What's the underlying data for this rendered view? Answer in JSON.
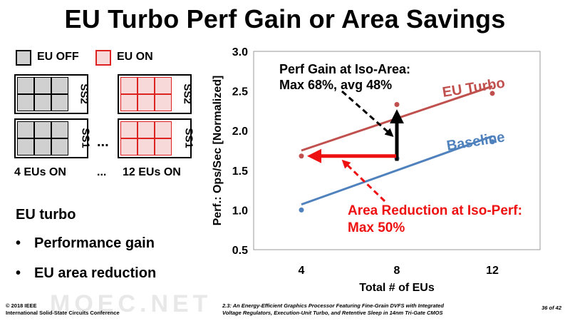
{
  "slide": {
    "title": "EU Turbo Perf Gain or Area Savings",
    "legend": {
      "off_label": "EU OFF",
      "on_label": "EU ON"
    },
    "blocks": {
      "left_top_label": "SS2",
      "left_bottom_label": "SS1",
      "right_top_label": "SS2",
      "right_bottom_label": "SS1",
      "ellipsis": "...",
      "left_caption": "4 EUs ON",
      "mid_caption": "...",
      "right_caption": "12 EUs ON"
    },
    "heading": "EU turbo",
    "bullets": [
      "Performance gain",
      "EU area reduction"
    ],
    "bullet_char": "•",
    "watermark": "MOEC.NET",
    "footer": {
      "left_line1": "© 2018 IEEE",
      "left_line2": "International Solid-State Circuits Conference",
      "mid_line1": "2.3: An Energy-Efficient Graphics Processor Featuring Fine-Grain DVFS with Integrated",
      "mid_line2": "Voltage Regulators, Execution-Unit Turbo, and Retentive Sleep in 14nm Tri-Gate CMOS",
      "page": "36 of 42"
    }
  },
  "colors": {
    "eu_turbo": "#c0504d",
    "baseline": "#4f81bd",
    "arrow_red": "#ee1111",
    "eu_off_fill": "#d0d0d0",
    "eu_on_fill": "#f8d9d9",
    "eu_on_border": "#dd2222"
  },
  "chart_data": {
    "type": "scatter",
    "title": "",
    "xlabel": "Total # of EUs",
    "ylabel": "Perf.: Ops/Sec [Normalized]",
    "xticks": [
      4,
      8,
      12
    ],
    "yticks": [
      "0.5",
      "1.0",
      "1.5",
      "2.0",
      "2.5",
      "3.0"
    ],
    "ylim": [
      0.5,
      3.0
    ],
    "xlim": [
      2,
      14
    ],
    "grid": false,
    "series": [
      {
        "name": "EU Turbo",
        "points": [
          {
            "x": 4,
            "y": 1.68
          },
          {
            "x": 8,
            "y": 2.33
          },
          {
            "x": 12,
            "y": 2.47
          }
        ],
        "fit": [
          {
            "x": 4,
            "y": 1.75
          },
          {
            "x": 12,
            "y": 2.56
          }
        ]
      },
      {
        "name": "Baseline",
        "points": [
          {
            "x": 4,
            "y": 1.0
          },
          {
            "x": 8,
            "y": 1.65
          },
          {
            "x": 12,
            "y": 1.86
          }
        ],
        "fit": [
          {
            "x": 4,
            "y": 1.07
          },
          {
            "x": 12,
            "y": 1.93
          }
        ]
      }
    ],
    "annotations": [
      {
        "id": "perf-gain",
        "line1": "Perf Gain at Iso-Area:",
        "line2": "Max 68%, avg 48%"
      },
      {
        "id": "area-reduction",
        "line1": "Area Reduction at Iso-Perf:",
        "line2": "Max 50%"
      }
    ]
  }
}
